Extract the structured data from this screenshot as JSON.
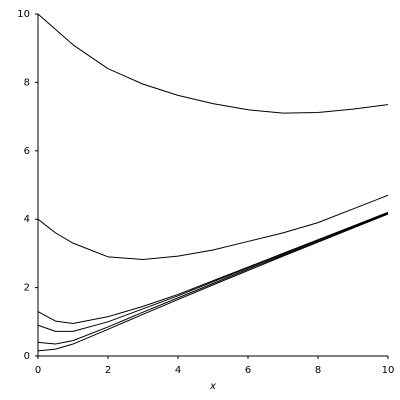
{
  "chart_data": {
    "type": "line",
    "x_label": "x",
    "x": [
      0,
      0.5,
      1,
      2,
      3,
      4,
      5,
      6,
      7,
      8,
      9,
      10
    ],
    "series": [
      {
        "color": "#000000",
        "values": [
          10,
          9.55,
          9.1,
          8.4,
          7.95,
          7.62,
          7.38,
          7.2,
          7.1,
          7.12,
          7.22,
          7.35
        ]
      },
      {
        "color": "#000000",
        "values": [
          4,
          3.6,
          3.3,
          2.9,
          2.82,
          2.92,
          3.1,
          3.35,
          3.6,
          3.9,
          4.3,
          4.7
        ]
      },
      {
        "color": "#000000",
        "values": [
          1.3,
          1.02,
          0.95,
          1.15,
          1.45,
          1.8,
          2.2,
          2.6,
          3.0,
          3.4,
          3.8,
          4.2
        ]
      },
      {
        "color": "#000000",
        "values": [
          0.9,
          0.72,
          0.72,
          1.0,
          1.38,
          1.76,
          2.17,
          2.58,
          2.98,
          3.38,
          3.78,
          4.18
        ]
      },
      {
        "color": "#000000",
        "values": [
          0.4,
          0.35,
          0.45,
          0.85,
          1.28,
          1.7,
          2.12,
          2.54,
          2.95,
          3.35,
          3.76,
          4.16
        ]
      },
      {
        "color": "#000000",
        "values": [
          0.15,
          0.2,
          0.35,
          0.78,
          1.22,
          1.65,
          2.08,
          2.5,
          2.92,
          3.33,
          3.74,
          4.15
        ]
      }
    ],
    "xlim": [
      0,
      10
    ],
    "ylim": [
      0,
      10
    ],
    "xticks": [
      0,
      2,
      4,
      6,
      8,
      10
    ],
    "yticks": [
      0,
      2,
      4,
      6,
      8,
      10
    ],
    "grid": false
  }
}
